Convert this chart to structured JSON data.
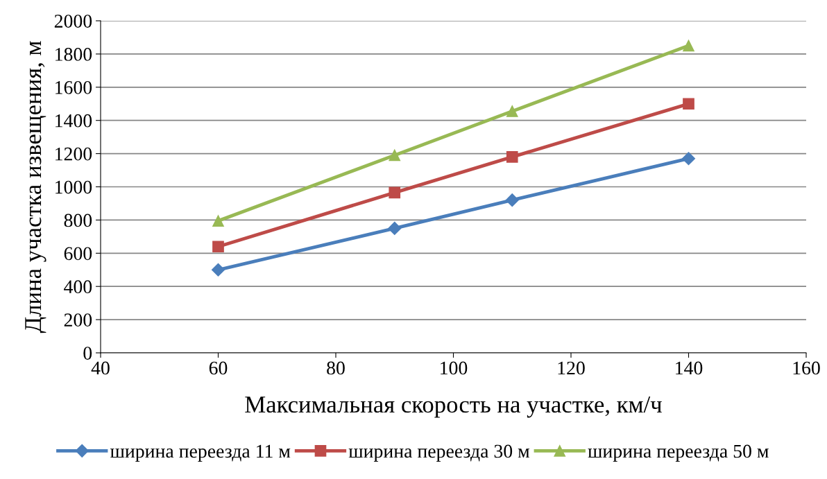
{
  "chart_data": {
    "type": "line",
    "xlabel": "Максимальная скорость на участке, км/ч",
    "ylabel": "Длина участка извещения, м",
    "x": [
      60,
      90,
      110,
      140
    ],
    "series": [
      {
        "name": "ширина переезда 11 м",
        "color": "#4a7ebb",
        "marker": "diamond",
        "values": [
          500,
          750,
          920,
          1170
        ]
      },
      {
        "name": "ширина переезда 30 м",
        "color": "#be4b48",
        "marker": "square",
        "values": [
          640,
          965,
          1180,
          1500
        ]
      },
      {
        "name": "ширина переезда 50 м",
        "color": "#98b954",
        "marker": "triangle",
        "values": [
          795,
          1190,
          1455,
          1850
        ]
      }
    ],
    "xlim": [
      40,
      160
    ],
    "xticks": [
      40,
      60,
      80,
      100,
      120,
      140,
      160
    ],
    "ylim": [
      0,
      2000
    ],
    "yticks": [
      0,
      200,
      400,
      600,
      800,
      1000,
      1200,
      1400,
      1600,
      1800,
      2000
    ],
    "grid": "y",
    "legend": "bottom",
    "line_style": "solid"
  }
}
